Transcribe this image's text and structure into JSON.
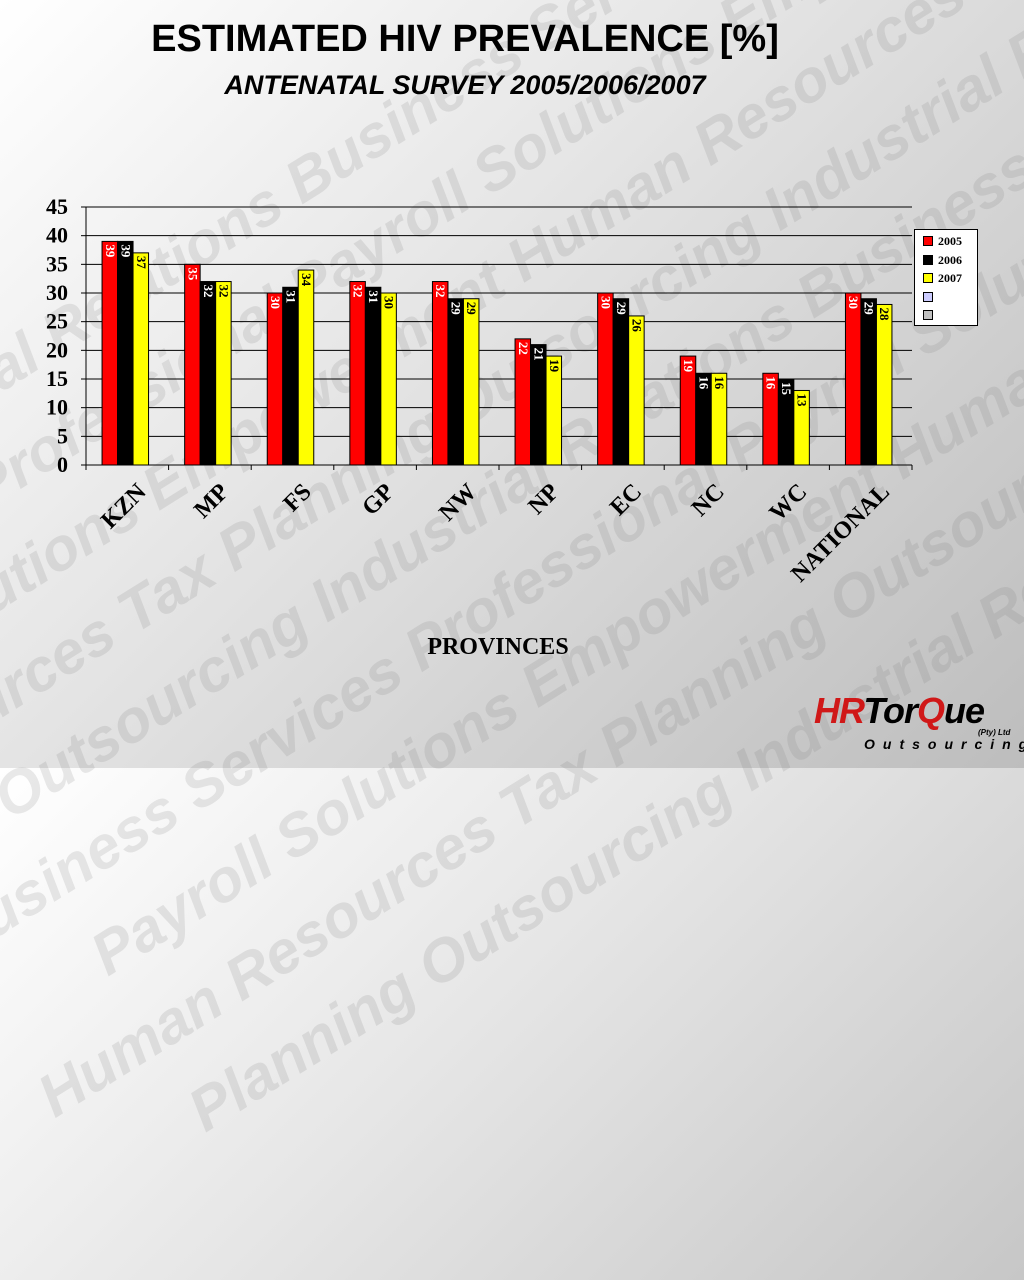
{
  "slide": {
    "title": "ESTIMATED HIV PREVALENCE [%]",
    "subtitle": "ANTENATAL SURVEY 2005/2006/2007",
    "background_words": [
      "Industrial",
      "Relations",
      "Business",
      "Services",
      "Professional",
      "Payroll",
      "Solutions",
      "Empowerment",
      "Human",
      "Resources",
      "Tax",
      "Planning",
      "Outsourcing"
    ]
  },
  "logo": {
    "part1": "HR",
    "part2": "Tor",
    "part3": "Q",
    "part4": "ue",
    "pty": "(Pty) Ltd",
    "sub": "Outsourcing",
    "colors": {
      "red": "#d01818",
      "black": "#000000"
    }
  },
  "chart_data": {
    "type": "bar",
    "title": "ESTIMATED HIV PREVALENCE [%]",
    "subtitle": "ANTENATAL SURVEY 2005/2006/2007",
    "xlabel": "PROVINCES",
    "ylabel": "",
    "ylim": [
      0,
      45
    ],
    "yticks": [
      0,
      5,
      10,
      15,
      20,
      25,
      30,
      35,
      40,
      45
    ],
    "grid": true,
    "legend_position": "right",
    "categories": [
      "KZN",
      "MP",
      "FS",
      "GP",
      "NW",
      "NP",
      "EC",
      "NC",
      "WC",
      "NATIONAL"
    ],
    "series": [
      {
        "name": "2005",
        "color": "#ff0000",
        "label_color": "#ffffff",
        "values": [
          39,
          35,
          30,
          32,
          32,
          22,
          30,
          19,
          16,
          30
        ]
      },
      {
        "name": "2006",
        "color": "#000000",
        "label_color": "#ffffff",
        "values": [
          39,
          32,
          31,
          31,
          29,
          21,
          29,
          16,
          15,
          29
        ]
      },
      {
        "name": "2007",
        "color": "#ffff00",
        "label_color": "#000000",
        "values": [
          37,
          32,
          34,
          30,
          29,
          19,
          26,
          16,
          13,
          28
        ]
      }
    ],
    "legend": [
      {
        "name": "2005",
        "color": "#ff0000"
      },
      {
        "name": "2006",
        "color": "#000000"
      },
      {
        "name": "2007",
        "color": "#ffff00"
      },
      {
        "name": "",
        "color": "#ccccff"
      },
      {
        "name": "",
        "color": "#c0c0c0"
      }
    ]
  }
}
